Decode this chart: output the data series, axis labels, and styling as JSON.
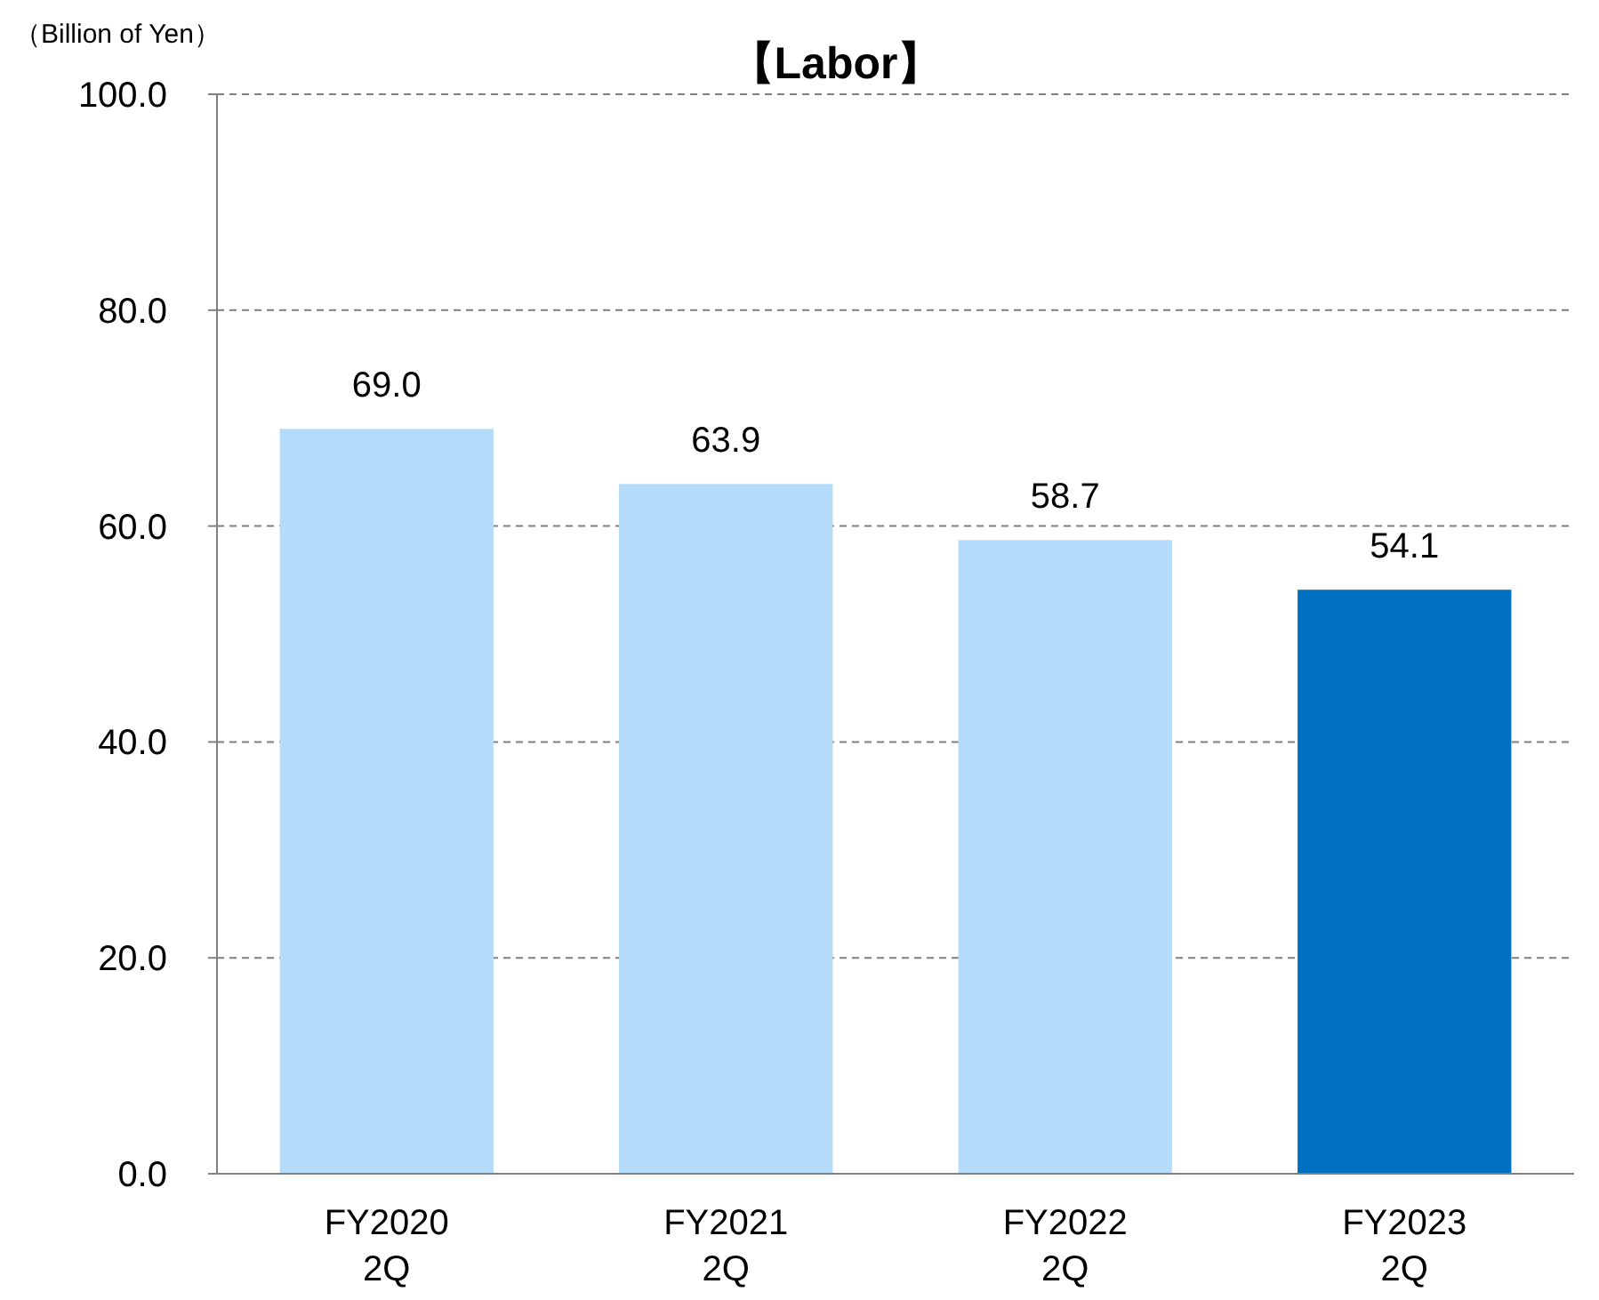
{
  "chart_data": {
    "type": "bar",
    "title": "【Labor】",
    "ylabel": "（Billion of Yen）",
    "categories": [
      "FY2020\n2Q",
      "FY2021\n2Q",
      "FY2022\n2Q",
      "FY2023\n2Q"
    ],
    "values": [
      69.0,
      63.9,
      58.7,
      54.1
    ],
    "colors": [
      "#b4dcfa",
      "#b4dcfa",
      "#b4dcfa",
      "#0070c0"
    ],
    "value_labels": [
      "69.0",
      "63.9",
      "58.7",
      "54.1"
    ],
    "ylim": [
      0,
      100
    ],
    "yticks": [
      {
        "value": 0,
        "label": "0.0"
      },
      {
        "value": 20,
        "label": "20.0"
      },
      {
        "value": 40,
        "label": "40.0"
      },
      {
        "value": 60,
        "label": "60.0"
      },
      {
        "value": 80,
        "label": "80.0"
      },
      {
        "value": 100,
        "label": "100.0"
      }
    ],
    "grid": "y"
  }
}
